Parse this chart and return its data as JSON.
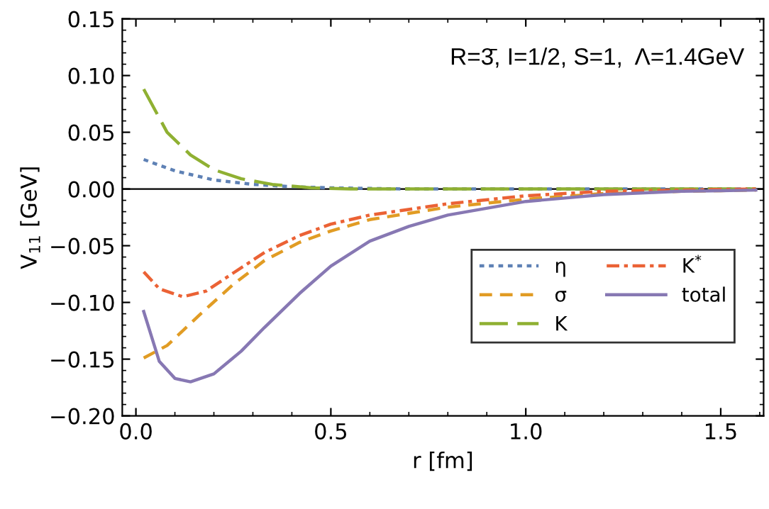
{
  "chart_data": {
    "type": "line",
    "xlabel": "r [fm]",
    "ylabel": "V$_{11}$ [GeV]",
    "annotations": [
      "R=3̄, I=1/2, S=1,  Λ=1.4GeV"
    ],
    "xlim": [
      -0.035,
      1.61
    ],
    "ylim": [
      -0.2,
      0.15
    ],
    "xticks": [
      {
        "value": 0,
        "label": "0.0"
      },
      {
        "value": 0.5,
        "label": "0.5"
      },
      {
        "value": 1.0,
        "label": "1.0"
      },
      {
        "value": 1.5,
        "label": "1.5"
      }
    ],
    "yticks": [
      {
        "value": -0.2,
        "label": "−0.20"
      },
      {
        "value": -0.15,
        "label": "−0.15"
      },
      {
        "value": -0.1,
        "label": "−0.10"
      },
      {
        "value": -0.05,
        "label": "−0.05"
      },
      {
        "value": 0,
        "label": "0.00"
      },
      {
        "value": 0.05,
        "label": "0.05"
      },
      {
        "value": 0.1,
        "label": "0.10"
      },
      {
        "value": 0.15,
        "label": "0.15"
      }
    ],
    "grid": false,
    "legend": "bottom right",
    "marker": "none",
    "ref_lines": [
      {
        "axis": "y",
        "value": 0,
        "color": "#000000",
        "line_style": "solid"
      }
    ],
    "series": [
      {
        "name": "η",
        "color": "#5e81b5",
        "line_style": "dotted",
        "x": [
          0.02,
          0.1,
          0.2,
          0.3,
          0.4,
          0.5,
          0.7,
          1.0,
          1.3,
          1.59
        ],
        "values": [
          0.026,
          0.016,
          0.008,
          0.004,
          0.002,
          0.001,
          0.0,
          0.0,
          0.0,
          0.0
        ]
      },
      {
        "name": "σ",
        "color": "#e19c24",
        "line_style": "dashed",
        "x": [
          0.02,
          0.08,
          0.16,
          0.25,
          0.33,
          0.42,
          0.5,
          0.6,
          0.8,
          1.0,
          1.2,
          1.4,
          1.59
        ],
        "values": [
          -0.149,
          -0.138,
          -0.112,
          -0.084,
          -0.063,
          -0.047,
          -0.037,
          -0.027,
          -0.016,
          -0.009,
          -0.004,
          -0.002,
          -0.001
        ]
      },
      {
        "name": "K",
        "color": "#8fb032",
        "line_style": "longdash",
        "x": [
          0.02,
          0.08,
          0.14,
          0.2,
          0.27,
          0.35,
          0.45,
          0.55,
          0.8,
          1.2,
          1.59
        ],
        "values": [
          0.088,
          0.05,
          0.03,
          0.017,
          0.009,
          0.004,
          0.001,
          0.0,
          0.0,
          0.0,
          0.0
        ]
      },
      {
        "name": "K$^{*}$",
        "color": "#eb6235",
        "line_style": "dashdot",
        "x": [
          0.02,
          0.06,
          0.12,
          0.18,
          0.25,
          0.33,
          0.42,
          0.5,
          0.6,
          0.8,
          1.0,
          1.2,
          1.4,
          1.59
        ],
        "values": [
          -0.073,
          -0.088,
          -0.095,
          -0.09,
          -0.074,
          -0.056,
          -0.041,
          -0.031,
          -0.023,
          -0.013,
          -0.006,
          -0.002,
          -0.001,
          0.0
        ]
      },
      {
        "name": "total",
        "color": "#8778b3",
        "line_style": "solid",
        "x": [
          0.02,
          0.06,
          0.1,
          0.14,
          0.2,
          0.27,
          0.33,
          0.42,
          0.5,
          0.6,
          0.7,
          0.8,
          1.0,
          1.2,
          1.4,
          1.59
        ],
        "values": [
          -0.108,
          -0.152,
          -0.167,
          -0.17,
          -0.163,
          -0.143,
          -0.122,
          -0.092,
          -0.068,
          -0.046,
          -0.033,
          -0.023,
          -0.011,
          -0.005,
          -0.002,
          -0.001
        ]
      }
    ]
  }
}
